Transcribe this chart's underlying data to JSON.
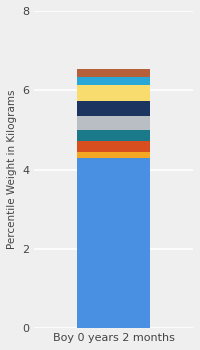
{
  "category": "Boy 0 years 2 months",
  "ylabel": "Percentile Weight in Kilograms",
  "ylim": [
    0,
    8
  ],
  "yticks": [
    0,
    2,
    4,
    6,
    8
  ],
  "segments": [
    {
      "value": 4.3,
      "color": "#4A90E2"
    },
    {
      "value": 0.15,
      "color": "#F5A623"
    },
    {
      "value": 0.28,
      "color": "#D94E1F"
    },
    {
      "value": 0.28,
      "color": "#1A7A8A"
    },
    {
      "value": 0.35,
      "color": "#B8BEC4"
    },
    {
      "value": 0.38,
      "color": "#1C3560"
    },
    {
      "value": 0.38,
      "color": "#F9DC6E"
    },
    {
      "value": 0.22,
      "color": "#29A8D8"
    },
    {
      "value": 0.2,
      "color": "#B5603A"
    }
  ],
  "bg_color": "#EFEFEF",
  "bar_width": 0.55,
  "ylabel_fontsize": 7.5,
  "tick_fontsize": 8,
  "xlabel_fontsize": 8
}
